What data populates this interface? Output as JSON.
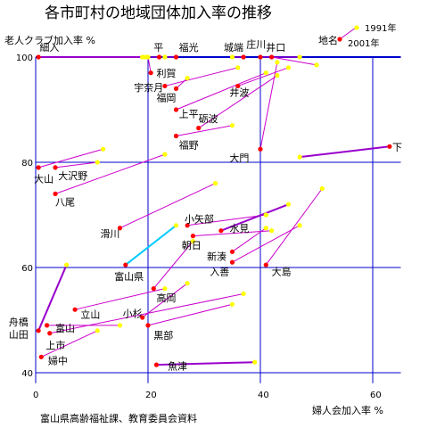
{
  "chart_data": {
    "type": "scatter",
    "title": "各市町村の地域団体加入率の推移",
    "xlabel": "婦人会加入率 %",
    "ylabel": "老人クラブ加入率 %",
    "source": "富山県高齢福祉課、教育委員会資料",
    "xlim": [
      0,
      65
    ],
    "ylim": [
      38,
      104
    ],
    "x_ticks": [
      0,
      20,
      40,
      60
    ],
    "y_ticks": [
      40,
      60,
      80,
      100
    ],
    "grid": true,
    "legend": {
      "location": "top-right",
      "entries": [
        {
          "label": "1991年",
          "color": "#ffff00"
        },
        {
          "label": "2001年",
          "color": "#ff0000"
        }
      ],
      "name_label": "地名"
    },
    "colors": {
      "axis": "#0000cc",
      "link": "#cc00cc",
      "link_thick": "#9900cc",
      "link_cyan": "#00ccff",
      "y1991": "#ffff00",
      "y2001": "#ff0000"
    },
    "points": [
      {
        "name": "細入",
        "y1991": [
          19.5,
          100
        ],
        "y2001": [
          0.5,
          100
        ],
        "thick": true
      },
      {
        "name": "平",
        "y1991": [
          19,
          100
        ],
        "y2001": [
          22,
          100
        ]
      },
      {
        "name": "福光",
        "y1991": [
          23,
          100
        ],
        "y2001": [
          25,
          100
        ]
      },
      {
        "name": "城端",
        "y1991": [
          35,
          100
        ],
        "y2001": [
          37,
          100
        ]
      },
      {
        "name": "庄川",
        "y1991": [
          47,
          100
        ],
        "y2001": [
          40,
          100
        ]
      },
      {
        "name": "井口",
        "y1991": [
          50,
          98.5
        ],
        "y2001": [
          42,
          100
        ]
      },
      {
        "name": "利賀",
        "y1991": [
          20,
          100
        ],
        "y2001": [
          20.5,
          97
        ]
      },
      {
        "name": "宇奈月",
        "y1991": [
          36,
          98
        ],
        "y2001": [
          23,
          94.5
        ]
      },
      {
        "name": "福岡",
        "y1991": [
          27,
          96
        ],
        "y2001": [
          25,
          94
        ]
      },
      {
        "name": "井波",
        "y1991": [
          45,
          98
        ],
        "y2001": [
          36,
          94.5
        ]
      },
      {
        "name": "上平",
        "y1991": [
          41,
          97
        ],
        "y2001": [
          25,
          90
        ]
      },
      {
        "name": "砺波",
        "y1991": [
          43,
          96.5
        ],
        "y2001": [
          29,
          86.5
        ]
      },
      {
        "name": "福野",
        "y1991": [
          35,
          87
        ],
        "y2001": [
          25,
          85
        ]
      },
      {
        "name": "大門",
        "y1991": [
          43,
          99
        ],
        "y2001": [
          40,
          82.5
        ]
      },
      {
        "name": "下",
        "y1991": [
          47,
          81
        ],
        "y2001": [
          63,
          83
        ],
        "thick": true
      },
      {
        "name": "大山",
        "y1991": [
          12,
          82.5
        ],
        "y2001": [
          0.5,
          79
        ]
      },
      {
        "name": "大沢野",
        "y1991": [
          11,
          80
        ],
        "y2001": [
          3.5,
          79
        ]
      },
      {
        "name": "八尾",
        "y1991": [
          23,
          81.5
        ],
        "y2001": [
          3.5,
          74
        ]
      },
      {
        "name": "滑川",
        "y1991": [
          32,
          76
        ],
        "y2001": [
          15,
          67.5
        ]
      },
      {
        "name": "小矢部",
        "y1991": [
          41,
          70
        ],
        "y2001": [
          27,
          68
        ]
      },
      {
        "name": "水見",
        "y1991": [
          45,
          72
        ],
        "y2001": [
          33,
          67
        ],
        "thick": true
      },
      {
        "name": "朝日",
        "y1991": [
          42,
          67
        ],
        "y2001": [
          28,
          66
        ]
      },
      {
        "name": "新湊",
        "y1991": [
          41,
          67.5
        ],
        "y2001": [
          35,
          63
        ]
      },
      {
        "name": "入善",
        "y1991": [
          47,
          68
        ],
        "y2001": [
          35,
          61
        ]
      },
      {
        "name": "大島",
        "y1991": [
          51,
          75
        ],
        "y2001": [
          41,
          60.5
        ]
      },
      {
        "name": "富山県",
        "y1991": [
          25,
          68
        ],
        "y2001": [
          16,
          60.5
        ],
        "cyan": true
      },
      {
        "name": "高岡",
        "y1991": [
          28,
          65
        ],
        "y2001": [
          21,
          56
        ]
      },
      {
        "name": "立山",
        "y1991": [
          23,
          56
        ],
        "y2001": [
          7,
          52
        ]
      },
      {
        "name": "小杉",
        "y1991": [
          27,
          57
        ],
        "y2001": [
          19,
          50.5
        ]
      },
      {
        "name": "黒部",
        "y1991": [
          35,
          53
        ],
        "y2001": [
          20,
          49
        ]
      },
      {
        "name": "富山",
        "y1991": [
          15,
          49
        ],
        "y2001": [
          2,
          49
        ]
      },
      {
        "name": "上市",
        "y1991": [
          37,
          55
        ],
        "y2001": [
          2.5,
          47.5
        ]
      },
      {
        "name": "舟橋",
        "y1991": [
          5.5,
          60.5
        ],
        "y2001": [
          0.5,
          48
        ],
        "thick": true
      },
      {
        "name": "婦中",
        "y1991": [
          11,
          48
        ],
        "y2001": [
          1,
          43
        ]
      },
      {
        "name": "魚津",
        "y1991": [
          39,
          42
        ],
        "y2001": [
          21.5,
          41.5
        ],
        "thick": true
      }
    ],
    "labels": [
      {
        "text": "細入",
        "x": 0.7,
        "y": 101.2
      },
      {
        "text": "平",
        "x": 21,
        "y": 101.2
      },
      {
        "text": "福光",
        "x": 25.5,
        "y": 101.2
      },
      {
        "text": "城端",
        "x": 33.5,
        "y": 101.2
      },
      {
        "text": "庄川",
        "x": 37.5,
        "y": 101.8
      },
      {
        "text": "井口",
        "x": 41,
        "y": 101.2
      },
      {
        "text": "利賀",
        "x": 21.5,
        "y": 96.3
      },
      {
        "text": "宇奈月",
        "x": 17.5,
        "y": 93.6
      },
      {
        "text": "福岡",
        "x": 21.5,
        "y": 91.6
      },
      {
        "text": "井波",
        "x": 34.5,
        "y": 92.6
      },
      {
        "text": "上平",
        "x": 25.5,
        "y": 88.6
      },
      {
        "text": "砺波",
        "x": 29,
        "y": 87.6
      },
      {
        "text": "福野",
        "x": 25.5,
        "y": 82.6
      },
      {
        "text": "大門",
        "x": 34.5,
        "y": 80.2
      },
      {
        "text": "下",
        "x": 63.5,
        "y": 82.2
      },
      {
        "text": "大山",
        "x": -0.3,
        "y": 76.2
      },
      {
        "text": "大沢野",
        "x": 4,
        "y": 76.8
      },
      {
        "text": "八尾",
        "x": 3.5,
        "y": 71.8
      },
      {
        "text": "滑川",
        "x": 11.5,
        "y": 65.8
      },
      {
        "text": "小矢部",
        "x": 26.5,
        "y": 68.6
      },
      {
        "text": "水見",
        "x": 34.5,
        "y": 66.8
      },
      {
        "text": "朝日",
        "x": 26,
        "y": 63.6
      },
      {
        "text": "新湊",
        "x": 30.5,
        "y": 61.4
      },
      {
        "text": "入善",
        "x": 31,
        "y": 58.6
      },
      {
        "text": "大島",
        "x": 42,
        "y": 58.6
      },
      {
        "text": "富山県",
        "x": 14,
        "y": 57.6
      },
      {
        "text": "高岡",
        "x": 21.5,
        "y": 53.6
      },
      {
        "text": "立山",
        "x": 8,
        "y": 50.4
      },
      {
        "text": "小杉",
        "x": 15.5,
        "y": 50.6
      },
      {
        "text": "黒部",
        "x": 21,
        "y": 46.4
      },
      {
        "text": "富山",
        "x": 3.5,
        "y": 47.8
      },
      {
        "text": "上市",
        "x": 1.8,
        "y": 44.6
      },
      {
        "text": "舟橋",
        "x": -4.8,
        "y": 49.0
      },
      {
        "text": "山田",
        "x": -4.8,
        "y": 46.6
      },
      {
        "text": "婦中",
        "x": 2.2,
        "y": 41.6
      },
      {
        "text": "魚津",
        "x": 23.5,
        "y": 40.6
      }
    ]
  }
}
